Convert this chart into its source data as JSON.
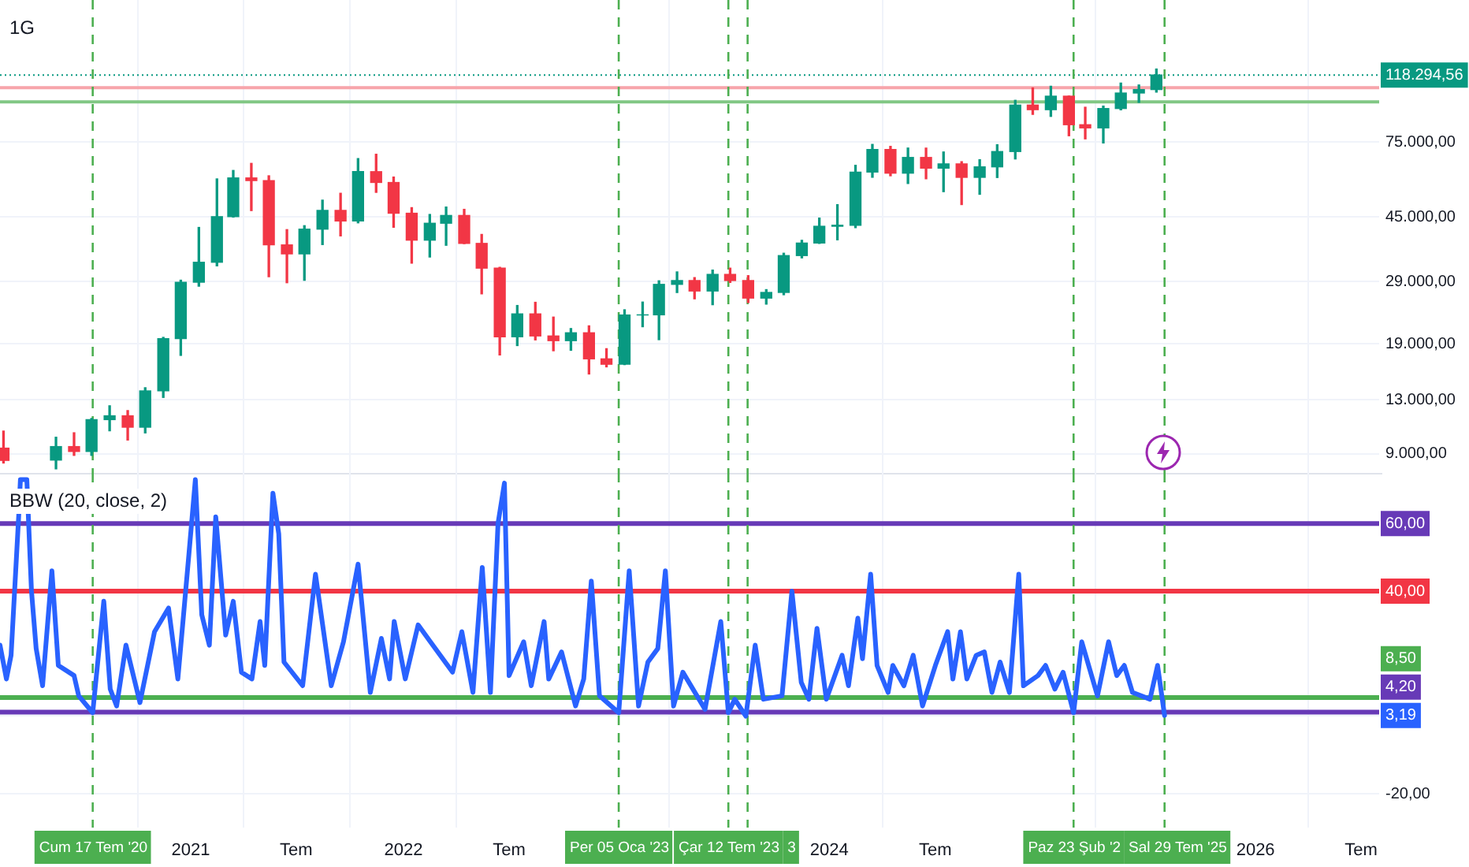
{
  "chart_data": [
    {
      "type": "candlestick",
      "title": "1G",
      "log": true,
      "grid": true,
      "tick_labels": "y",
      "xlim": [
        "2020-02-09",
        "2026-08-01"
      ],
      "xticks": [
        {
          "value": "2021",
          "label": null
        },
        {
          "value": "2021-07",
          "label": null
        },
        {
          "value": "2022",
          "label": null
        },
        {
          "value": "2022-07",
          "label": null
        },
        {
          "value": "2024",
          "label": null
        },
        {
          "value": "2024-07",
          "label": null
        },
        {
          "value": "2026",
          "label": null
        },
        {
          "value": "2026-07",
          "label": null
        }
      ],
      "ylim": [
        7900,
        197000
      ],
      "yticks": [
        {
          "value": 9000,
          "label": "9.000,00"
        },
        {
          "value": 13000,
          "label": "13.000,00"
        },
        {
          "value": 19000,
          "label": "19.000,00"
        },
        {
          "value": 29000,
          "label": "29.000,00"
        },
        {
          "value": 45000,
          "label": "45.000,00"
        },
        {
          "value": 75000,
          "label": "75.000,00"
        }
      ],
      "x": [
        "2020-02-15",
        "2020-05-15",
        "2020-06-15",
        "2020-07-15",
        "2020-08-15",
        "2020-09-15",
        "2020-10-15",
        "2020-11-15",
        "2020-12-15",
        "2021-01-15",
        "2021-02-15",
        "2021-03-15",
        "2021-04-15",
        "2021-05-15",
        "2021-06-15",
        "2021-07-15",
        "2021-08-15",
        "2021-09-15",
        "2021-10-15",
        "2021-11-15",
        "2021-12-15",
        "2022-01-15",
        "2022-02-15",
        "2022-03-15",
        "2022-04-15",
        "2022-05-15",
        "2022-06-15",
        "2022-07-15",
        "2022-08-15",
        "2022-09-15",
        "2022-10-15",
        "2022-11-15",
        "2022-12-15",
        "2023-01-15",
        "2023-02-15",
        "2023-03-15",
        "2023-04-15",
        "2023-05-15",
        "2023-06-15",
        "2023-07-15",
        "2023-08-15",
        "2023-09-15",
        "2023-10-15",
        "2023-11-15",
        "2023-12-15",
        "2024-01-15",
        "2024-02-15",
        "2024-03-15",
        "2024-04-15",
        "2024-05-15",
        "2024-06-15",
        "2024-07-15",
        "2024-08-15",
        "2024-09-15",
        "2024-10-15",
        "2024-11-15",
        "2024-12-15",
        "2025-01-15",
        "2025-02-15",
        "2025-03-15",
        "2025-04-15",
        "2025-05-15",
        "2025-06-15",
        "2025-07-15"
      ],
      "ohlc": [
        [
          9350,
          10500,
          8450,
          8600
        ],
        [
          8620,
          10070,
          8120,
          9450
        ],
        [
          9450,
          10380,
          8900,
          9140
        ],
        [
          9140,
          11440,
          8900,
          11350
        ],
        [
          11350,
          12470,
          10520,
          11650
        ],
        [
          11650,
          12070,
          9880,
          10780
        ],
        [
          10780,
          14100,
          10370,
          13800
        ],
        [
          13800,
          19860,
          13200,
          19700
        ],
        [
          19700,
          29300,
          17570,
          28900
        ],
        [
          28900,
          41950,
          28130,
          33100
        ],
        [
          33100,
          58350,
          32300,
          45140
        ],
        [
          45140,
          61800,
          45000,
          58740
        ],
        [
          58740,
          64850,
          47040,
          57690
        ],
        [
          57690,
          59600,
          30000,
          37250
        ],
        [
          37250,
          41330,
          28800,
          35040
        ],
        [
          35040,
          42450,
          29280,
          41460
        ],
        [
          41460,
          50500,
          37330,
          47100
        ],
        [
          47100,
          52920,
          39600,
          43820
        ],
        [
          43820,
          67000,
          43280,
          61300
        ],
        [
          61300,
          69000,
          53250,
          56950
        ],
        [
          56950,
          59100,
          42000,
          46200
        ],
        [
          46200,
          47990,
          32900,
          38470
        ],
        [
          38470,
          45820,
          34300,
          43160
        ],
        [
          43160,
          48190,
          37150,
          45510
        ],
        [
          45510,
          47440,
          37580,
          37630
        ],
        [
          37630,
          40000,
          26700,
          31800
        ],
        [
          31800,
          31980,
          17620,
          19940
        ],
        [
          19940,
          24670,
          18780,
          23300
        ],
        [
          23300,
          25210,
          19520,
          20050
        ],
        [
          20050,
          22800,
          18130,
          19420
        ],
        [
          19420,
          21090,
          18190,
          20490
        ],
        [
          20490,
          21480,
          15480,
          17160
        ],
        [
          17160,
          18390,
          16250,
          16540
        ],
        [
          16540,
          23960,
          16500,
          23130
        ],
        [
          23130,
          25250,
          21350,
          23150
        ],
        [
          23150,
          29180,
          19550,
          28480
        ],
        [
          28480,
          31000,
          26940,
          29230
        ],
        [
          29230,
          29820,
          25810,
          27220
        ],
        [
          27220,
          31390,
          24800,
          30480
        ],
        [
          30480,
          31800,
          28860,
          29230
        ],
        [
          29230,
          30220,
          25170,
          25940
        ],
        [
          25940,
          27480,
          24900,
          26960
        ],
        [
          26960,
          35200,
          26540,
          34640
        ],
        [
          34640,
          38430,
          34100,
          37720
        ],
        [
          37720,
          44700,
          37620,
          42280
        ],
        [
          42280,
          48970,
          38560,
          42580
        ],
        [
          42580,
          64000,
          41880,
          61130
        ],
        [
          61130,
          73780,
          59000,
          71280
        ],
        [
          71280,
          72800,
          59600,
          60670
        ],
        [
          60670,
          71980,
          56550,
          67520
        ],
        [
          67520,
          71950,
          58400,
          62770
        ],
        [
          62770,
          70080,
          53500,
          64630
        ],
        [
          64630,
          65600,
          49000,
          58970
        ],
        [
          58970,
          66500,
          52550,
          63330
        ],
        [
          63330,
          73620,
          58900,
          70290
        ],
        [
          70290,
          99590,
          66830,
          96400
        ],
        [
          96400,
          108350,
          90500,
          93430
        ],
        [
          93430,
          109590,
          89260,
          102430
        ],
        [
          102430,
          102500,
          78250,
          84350
        ],
        [
          84350,
          95000,
          76600,
          82550
        ],
        [
          82550,
          95750,
          74500,
          94170
        ],
        [
          94170,
          111980,
          93330,
          104640
        ],
        [
          104640,
          110530,
          98200,
          107140
        ],
        [
          107140,
          123200,
          105300,
          118294.56
        ]
      ],
      "ref_lines": [
        {
          "axis": "y",
          "value": 118294.56,
          "label": "118.294,56",
          "color": "#089981",
          "line_style": "dotted"
        },
        {
          "axis": "y",
          "value": 108500,
          "color": "#f7a5ab",
          "line_style": "solid"
        },
        {
          "axis": "y",
          "value": 98500,
          "color": "#81c784",
          "line_style": "solid"
        },
        {
          "axis": "x",
          "value": "2020-07-17",
          "color": "#4caf50",
          "line_style": "dashed"
        },
        {
          "axis": "x",
          "value": "2023-01-05",
          "color": "#4caf50",
          "line_style": "dashed"
        },
        {
          "axis": "x",
          "value": "2023-07-12",
          "color": "#4caf50",
          "line_style": "dashed"
        },
        {
          "axis": "x",
          "value": "2023-08-14",
          "color": "#4caf50",
          "line_style": "dashed"
        },
        {
          "axis": "x",
          "value": "2025-02-23",
          "color": "#4caf50",
          "line_style": "dashed"
        },
        {
          "axis": "x",
          "value": "2025-07-29",
          "color": "#4caf50",
          "line_style": "dashed"
        }
      ]
    },
    {
      "type": "line",
      "title": "BBW (20, close, 2)",
      "grid": true,
      "marker": "none",
      "xlim": [
        "2020-02-09",
        "2026-08-01"
      ],
      "xticks": [
        {
          "value": "2021",
          "label": "2021"
        },
        {
          "value": "2021-07",
          "label": "Tem"
        },
        {
          "value": "2022",
          "label": "2022"
        },
        {
          "value": "2022-07",
          "label": "Tem"
        },
        {
          "value": "2024",
          "label": "2024"
        },
        {
          "value": "2024-07",
          "label": "Tem"
        },
        {
          "value": "2026",
          "label": "2026"
        },
        {
          "value": "2026-07",
          "label": "Tem"
        }
      ],
      "ylim": [
        -30,
        75
      ],
      "yticks": [
        {
          "value": 60,
          "label": "60,00"
        },
        {
          "value": 40,
          "label": "40,00"
        },
        {
          "value": 3.19,
          "label": "3,19"
        },
        {
          "value": -20,
          "label": "-20,00"
        }
      ],
      "series": [
        {
          "color": "#2962ff",
          "x": [
            "2020-02-09",
            "2020-02-20",
            "2020-02-28",
            "2020-03-12",
            "2020-03-15",
            "2020-03-26",
            "2020-04-03",
            "2020-04-11",
            "2020-04-22",
            "2020-05-08",
            "2020-05-19",
            "2020-06-15",
            "2020-06-23",
            "2020-07-17",
            "2020-08-05",
            "2020-08-16",
            "2020-08-27",
            "2020-09-12",
            "2020-10-06",
            "2020-10-31",
            "2020-11-24",
            "2020-12-10",
            "2020-12-29",
            "2021-01-09",
            "2021-01-20",
            "2021-02-02",
            "2021-02-13",
            "2021-03-02",
            "2021-03-15",
            "2021-03-29",
            "2021-04-16",
            "2021-04-30",
            "2021-05-08",
            "2021-05-22",
            "2021-06-01",
            "2021-06-10",
            "2021-07-12",
            "2021-08-03",
            "2021-08-30",
            "2021-09-20",
            "2021-10-15",
            "2021-11-05",
            "2021-11-24",
            "2021-12-08",
            "2021-12-16",
            "2022-01-04",
            "2022-01-26",
            "2022-02-16",
            "2022-03-26",
            "2022-04-11",
            "2022-04-30",
            "2022-05-16",
            "2022-05-30",
            "2022-06-12",
            "2022-06-23",
            "2022-07-01",
            "2022-07-26",
            "2022-08-08",
            "2022-08-30",
            "2022-09-07",
            "2022-09-29",
            "2022-10-23",
            "2022-11-06",
            "2022-11-19",
            "2022-12-03",
            "2023-01-05",
            "2023-01-23",
            "2023-02-08",
            "2023-02-24",
            "2023-03-13",
            "2023-03-26",
            "2023-04-09",
            "2023-04-25",
            "2023-06-02",
            "2023-06-29",
            "2023-07-12",
            "2023-07-23",
            "2023-08-11",
            "2023-08-27",
            "2023-09-10",
            "2023-10-12",
            "2023-10-29",
            "2023-11-14",
            "2023-11-27",
            "2023-12-11",
            "2023-12-27",
            "2024-01-23",
            "2024-02-03",
            "2024-02-19",
            "2024-02-27",
            "2024-03-12",
            "2024-03-23",
            "2024-04-11",
            "2024-04-19",
            "2024-05-08",
            "2024-05-24",
            "2024-06-09",
            "2024-07-01",
            "2024-07-22",
            "2024-07-31",
            "2024-08-13",
            "2024-08-24",
            "2024-09-09",
            "2024-09-23",
            "2024-10-06",
            "2024-10-20",
            "2024-11-05",
            "2024-11-21",
            "2024-11-29",
            "2024-12-24",
            "2025-01-06",
            "2025-01-22",
            "2025-02-05",
            "2025-02-23",
            "2025-03-09",
            "2025-04-05",
            "2025-04-24",
            "2025-05-08",
            "2025-05-21",
            "2025-06-04",
            "2025-07-04",
            "2025-07-17",
            "2025-07-29"
          ],
          "values": [
            24,
            14,
            21,
            62,
            73,
            73,
            40,
            23,
            12,
            46,
            18,
            15,
            9,
            4,
            37,
            11,
            6,
            24,
            7,
            28,
            35,
            14,
            51,
            73,
            33,
            24,
            62,
            27,
            37,
            16,
            14,
            31,
            18,
            69,
            57,
            19,
            12,
            45,
            12,
            25,
            48,
            10,
            26,
            14,
            31,
            14,
            30,
            25,
            16,
            28,
            10,
            47,
            10,
            60,
            72,
            15,
            25,
            12,
            31,
            14,
            22,
            6,
            14,
            43,
            9,
            4,
            46,
            6,
            19,
            23,
            46,
            6,
            16,
            5,
            31,
            4,
            8,
            3,
            24,
            8,
            9,
            40,
            13,
            8,
            29,
            8,
            21,
            12,
            32,
            20,
            45,
            18,
            10,
            18,
            12,
            21,
            6,
            18,
            28,
            14,
            28,
            14,
            21,
            22,
            10,
            19,
            10,
            45,
            12,
            15,
            18,
            11,
            16,
            4,
            25,
            9,
            25,
            15,
            18,
            10,
            8,
            18,
            3.19
          ]
        }
      ],
      "ref_lines": [
        {
          "axis": "y",
          "value": 60,
          "color": "#673ab7",
          "line_style": "solid"
        },
        {
          "axis": "y",
          "value": 40,
          "color": "#f23645",
          "line_style": "solid"
        },
        {
          "axis": "y",
          "value": 8.5,
          "label": "8,50",
          "color": "#4caf50",
          "line_style": "solid"
        },
        {
          "axis": "y",
          "value": 4.2,
          "label": "4,20",
          "color": "#673ab7",
          "line_style": "solid"
        },
        {
          "axis": "x",
          "value": "2020-07-17",
          "label": "Cum 17 Tem '20",
          "color": "#4caf50",
          "line_style": "dashed"
        },
        {
          "axis": "x",
          "value": "2023-01-05",
          "label": "Per 05 Oca '23",
          "color": "#4caf50",
          "line_style": "dashed"
        },
        {
          "axis": "x",
          "value": "2023-07-12",
          "label": "Çar 12 Tem '23",
          "color": "#4caf50",
          "line_style": "dashed"
        },
        {
          "axis": "x",
          "value": "2023-08-14",
          "label": "3",
          "color": "#4caf50",
          "line_style": "dashed"
        },
        {
          "axis": "x",
          "value": "2025-02-23",
          "label": "Paz 23 Şub '2",
          "color": "#4caf50",
          "line_style": "dashed"
        },
        {
          "axis": "x",
          "value": "2025-07-29",
          "label": "Sal 29 Tem '25",
          "color": "#4caf50",
          "line_style": "dashed"
        }
      ]
    }
  ]
}
